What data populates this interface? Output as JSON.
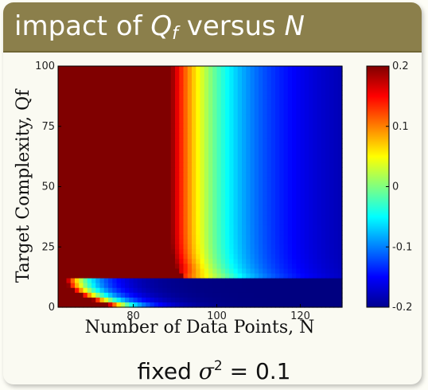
{
  "header": {
    "title_prefix": "impact of ",
    "title_q": "Q",
    "title_q_sub": "f",
    "title_suffix": " versus ",
    "title_n": "N"
  },
  "chart_data": {
    "type": "heatmap",
    "title": "impact of Qf versus N",
    "xlabel": "Number of Data Points, N",
    "ylabel": "Target Complexity, Qf",
    "xlim": [
      62,
      130
    ],
    "ylim": [
      0,
      100
    ],
    "xticks": [
      80,
      100,
      120
    ],
    "yticks": [
      0,
      25,
      50,
      75,
      100
    ],
    "colorbar": {
      "range": [
        -0.2,
        0.2
      ],
      "ticks": [
        0.2,
        0.1,
        0,
        -0.1,
        -0.2
      ],
      "tick_labels": [
        "0.2",
        "0.1",
        "0",
        "-0.1",
        "-0.2"
      ],
      "colormap": "jet"
    },
    "annotation": {
      "text_prefix": "fixed ",
      "symbol": "σ",
      "exponent": "2",
      "text_suffix": " = 0.1"
    },
    "description_of_field": "Overfit measure over (N, Qf); value saturates at 0.2 for small N and high Qf, decreases toward -0.2 for large N; a band near Qf≈10 transitions from positive near N≈62 to -0.2 along larger N."
  }
}
